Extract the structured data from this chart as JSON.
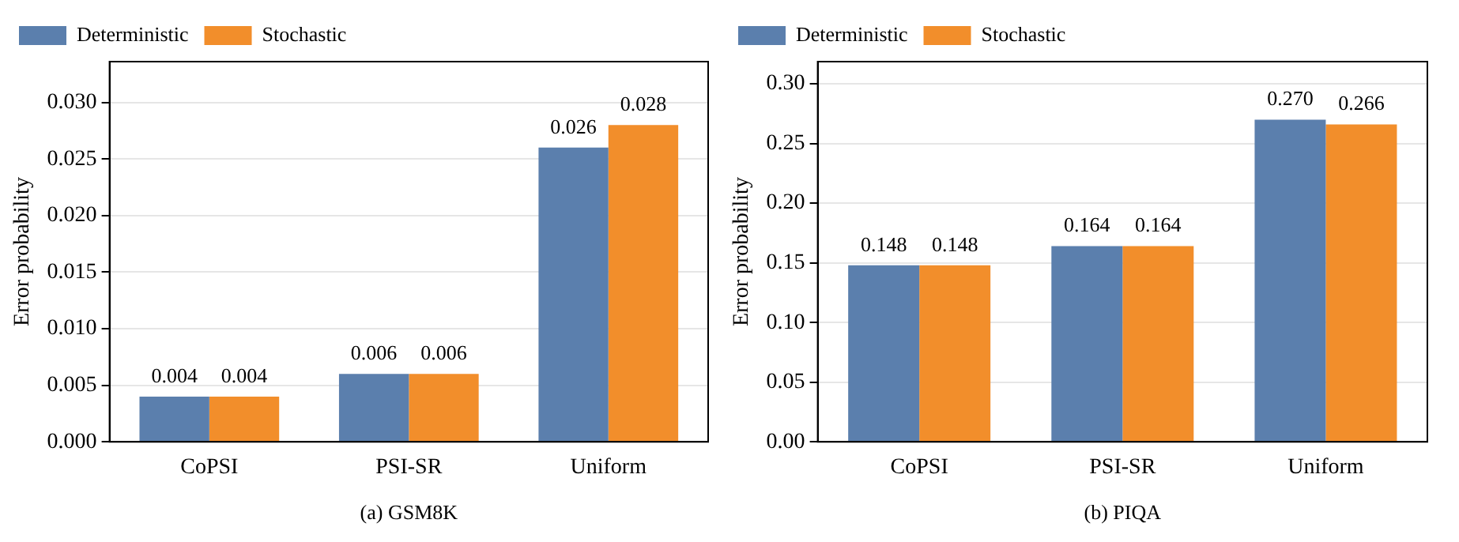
{
  "chart_data": [
    {
      "type": "bar",
      "xlabel": "(a) GSM8K",
      "ylabel": "Error probability",
      "categories": [
        "CoPSI",
        "PSI-SR",
        "Uniform"
      ],
      "series": [
        {
          "name": "Deterministic",
          "color": "#5b7fad",
          "values": [
            0.004,
            0.006,
            0.026
          ],
          "value_labels": [
            "0.004",
            "0.006",
            "0.026"
          ]
        },
        {
          "name": "Stochastic",
          "color": "#f28e2b",
          "values": [
            0.004,
            0.006,
            0.028
          ],
          "value_labels": [
            "0.004",
            "0.006",
            "0.028"
          ]
        }
      ],
      "ylim": [
        0,
        0.0336
      ],
      "yticks": [
        {
          "value": 0,
          "label": "0.000"
        },
        {
          "value": 0.005,
          "label": "0.005"
        },
        {
          "value": 0.01,
          "label": "0.010"
        },
        {
          "value": 0.015,
          "label": "0.015"
        },
        {
          "value": 0.02,
          "label": "0.020"
        },
        {
          "value": 0.025,
          "label": "0.025"
        },
        {
          "value": 0.03,
          "label": "0.030"
        }
      ],
      "grid": "y",
      "legend": "top left"
    },
    {
      "type": "bar",
      "xlabel": "(b) PIQA",
      "ylabel": "Error probability",
      "categories": [
        "CoPSI",
        "PSI-SR",
        "Uniform"
      ],
      "series": [
        {
          "name": "Deterministic",
          "color": "#5b7fad",
          "values": [
            0.148,
            0.164,
            0.27
          ],
          "value_labels": [
            "0.148",
            "0.164",
            "0.270"
          ]
        },
        {
          "name": "Stochastic",
          "color": "#f28e2b",
          "values": [
            0.148,
            0.164,
            0.266
          ],
          "value_labels": [
            "0.148",
            "0.164",
            "0.266"
          ]
        }
      ],
      "ylim": [
        0,
        0.3186
      ],
      "yticks": [
        {
          "value": 0,
          "label": "0.00"
        },
        {
          "value": 0.05,
          "label": "0.05"
        },
        {
          "value": 0.1,
          "label": "0.10"
        },
        {
          "value": 0.15,
          "label": "0.15"
        },
        {
          "value": 0.2,
          "label": "0.20"
        },
        {
          "value": 0.25,
          "label": "0.25"
        },
        {
          "value": 0.3,
          "label": "0.30"
        }
      ],
      "grid": "y",
      "legend": "top left"
    }
  ]
}
